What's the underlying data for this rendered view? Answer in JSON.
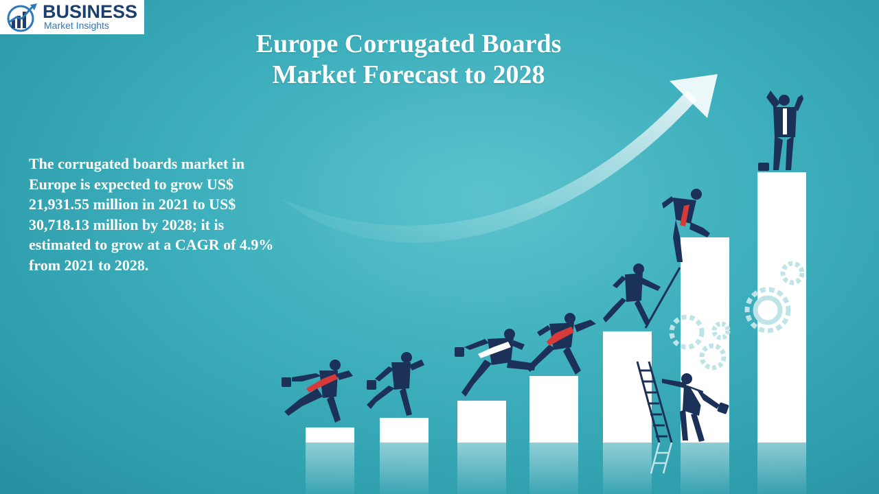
{
  "logo": {
    "top_text": "BUSINESS",
    "bottom_text": "Market Insights",
    "icon": "growth-chart-logo-icon"
  },
  "title": {
    "line1": "Europe Corrugated Boards",
    "line2": "Market Forecast to 2028"
  },
  "description": "The corrugated boards market in Europe is expected to grow US$ 21,931.55 million in 2021 to US$ 30,718.13 million by 2028; it is estimated to grow at a CAGR of 4.9% from 2021 to 2028.",
  "colors": {
    "background": "#3fb0bd",
    "figure": "#1b3157",
    "tie_red": "#d63a3a",
    "logo_navy": "#1a3f73",
    "logo_blue": "#2d78b8"
  }
}
